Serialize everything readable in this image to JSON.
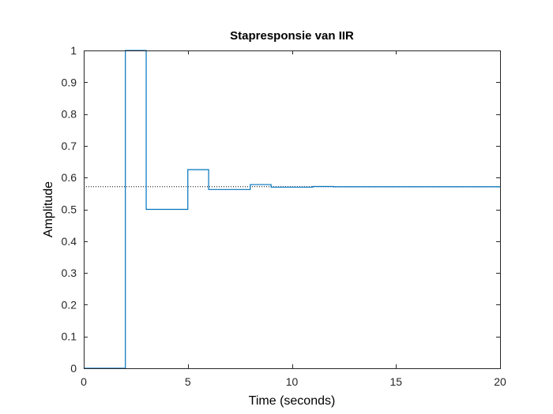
{
  "chart_data": {
    "type": "line",
    "title": "Stapresponsie van IIR",
    "xlabel": "Time (seconds)",
    "ylabel": "Amplitude",
    "xlim": [
      0,
      20
    ],
    "ylim": [
      0,
      1
    ],
    "x_ticks": [
      0,
      5,
      10,
      15,
      20
    ],
    "y_ticks": [
      0,
      0.1,
      0.2,
      0.3,
      0.4,
      0.5,
      0.6,
      0.7,
      0.8,
      0.9,
      1
    ],
    "x_tick_labels": [
      "0",
      "5",
      "10",
      "15",
      "20"
    ],
    "y_tick_labels": [
      "0",
      "0.1",
      "0.2",
      "0.3",
      "0.4",
      "0.5",
      "0.6",
      "0.7",
      "0.8",
      "0.9",
      "1"
    ],
    "grid": false,
    "legend": "none",
    "line_color": "#0072BD",
    "steady_state_color": "#000000",
    "series": [
      {
        "style": "stairs",
        "x": [
          0,
          1,
          2,
          3,
          4,
          5,
          6,
          7,
          8,
          9,
          10,
          11,
          12,
          13,
          14,
          15,
          16,
          17,
          18,
          19,
          20
        ],
        "y": [
          0,
          0,
          1,
          0.5,
          0.5,
          0.625,
          0.5625,
          0.5625,
          0.578,
          0.57,
          0.57,
          0.572,
          0.571,
          0.571,
          0.571,
          0.571,
          0.571,
          0.571,
          0.571,
          0.571,
          0.571
        ]
      }
    ],
    "steady_state": 0.5714
  }
}
